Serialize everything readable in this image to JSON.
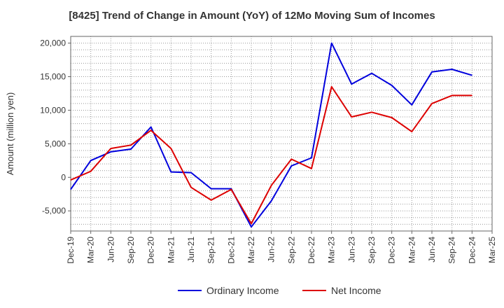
{
  "chart_data": {
    "type": "line",
    "title": "[8425]  Trend of Change in Amount (YoY) of 12Mo Moving Sum of Incomes",
    "xlabel": "",
    "ylabel": "Amount (million yen)",
    "ylim": [
      -8000,
      21000
    ],
    "yticks": [
      -5000,
      0,
      5000,
      10000,
      15000,
      20000
    ],
    "ytick_labels": [
      "-5,000",
      "0",
      "5,000",
      "10,000",
      "15,000",
      "20,000"
    ],
    "xtick_labels": [
      "Dec-19",
      "Mar-20",
      "Jun-20",
      "Sep-20",
      "Dec-20",
      "Mar-21",
      "Jun-21",
      "Sep-21",
      "Dec-21",
      "Mar-22",
      "Jun-22",
      "Sep-22",
      "Dec-22",
      "Mar-23",
      "Jun-23",
      "Sep-23",
      "Dec-23",
      "Mar-24",
      "Jun-24",
      "Sep-24",
      "Dec-24",
      "Mar-25"
    ],
    "grid": true,
    "legend_position": "bottom",
    "series": [
      {
        "name": "Ordinary Income",
        "color": "#0000dd",
        "values": [
          -1800,
          2500,
          3800,
          4200,
          7500,
          800,
          700,
          -1700,
          -1700,
          -7400,
          -3500,
          1700,
          2900,
          20000,
          13900,
          15500,
          13700,
          10800,
          15700,
          16100,
          15200
        ]
      },
      {
        "name": "Net Income",
        "color": "#dd0000",
        "values": [
          -400,
          900,
          4300,
          4800,
          7000,
          4300,
          -1500,
          -3400,
          -1800,
          -6900,
          -1200,
          2700,
          1300,
          13500,
          9000,
          9700,
          8900,
          6800,
          11000,
          12200,
          12200
        ]
      }
    ]
  }
}
